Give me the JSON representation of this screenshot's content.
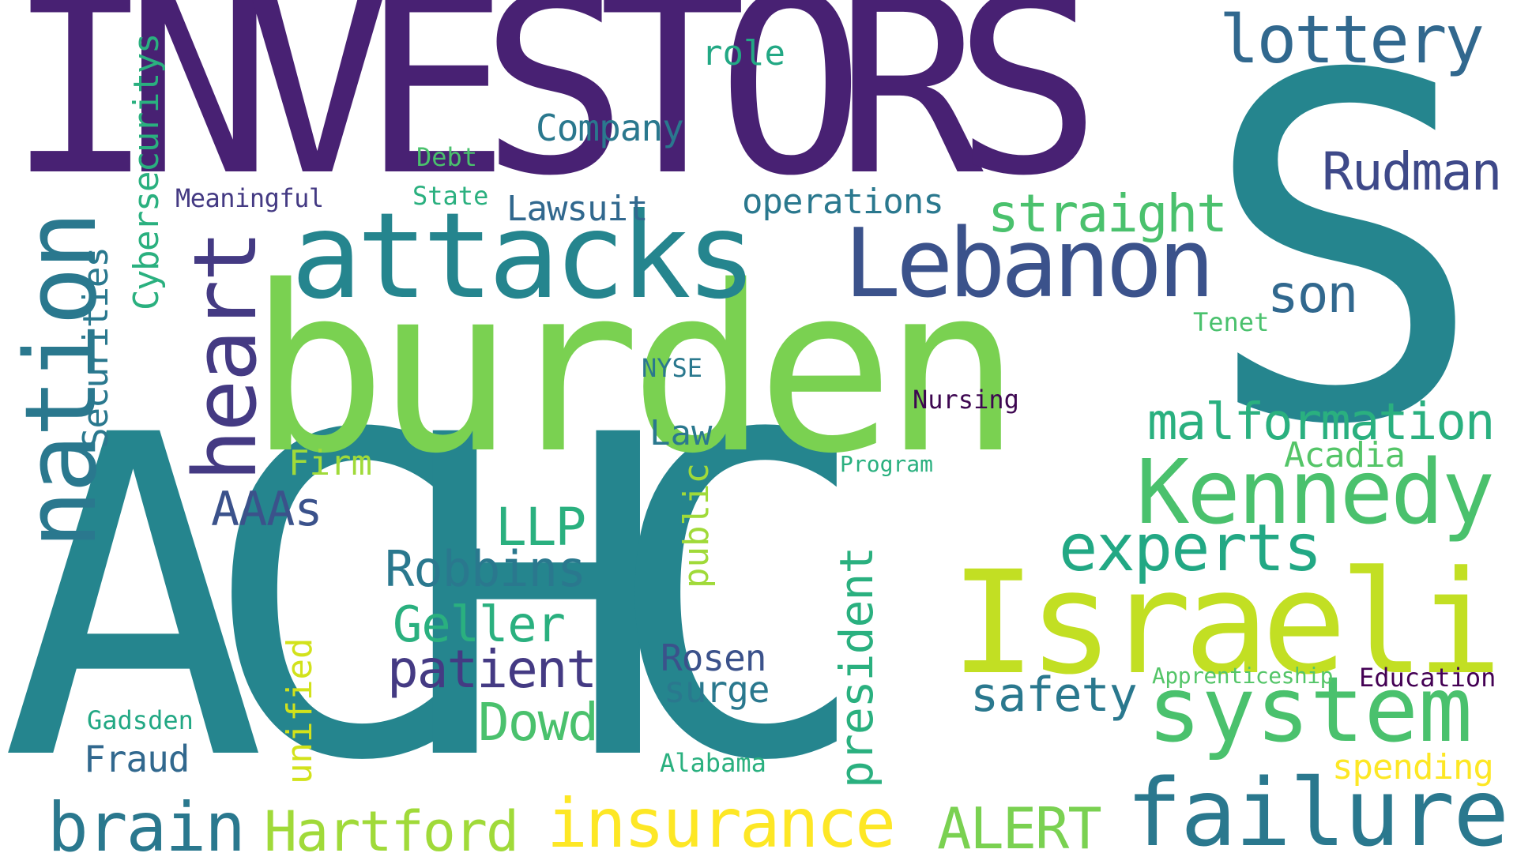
{
  "words": {
    "w0": {
      "text": "INVESTORS",
      "color": "#482173"
    },
    "w1": {
      "text": "S",
      "color": "#25858e"
    },
    "w2": {
      "text": "ACHC",
      "color": "#25858e"
    },
    "w3": {
      "text": "burden",
      "color": "#7ad151"
    },
    "w4": {
      "text": "attacks",
      "color": "#25858e"
    },
    "w5": {
      "text": "Lebanon",
      "color": "#3b528b"
    },
    "w6": {
      "text": "Israeli",
      "color": "#c2df23"
    },
    "w7": {
      "text": "Kennedy",
      "color": "#4ac16d"
    },
    "w8": {
      "text": "system",
      "color": "#4ac16d"
    },
    "w9": {
      "text": "failure",
      "color": "#2a788e"
    },
    "w10": {
      "text": "insurance",
      "color": "#fde725"
    },
    "w11": {
      "text": "brain",
      "color": "#2a788e"
    },
    "w12": {
      "text": "Hartford",
      "color": "#a0da39"
    },
    "w13": {
      "text": "ALERT",
      "color": "#7ad151"
    },
    "w14": {
      "text": "lottery",
      "color": "#31688e"
    },
    "w15": {
      "text": "Rudman",
      "color": "#3e4989"
    },
    "w16": {
      "text": "straight",
      "color": "#4ac16d"
    },
    "w17": {
      "text": "son",
      "color": "#31688e"
    },
    "w18": {
      "text": "malformation",
      "color": "#2ab07f"
    },
    "w19": {
      "text": "experts",
      "color": "#22a884"
    },
    "w20": {
      "text": "Acadia",
      "color": "#54c568"
    },
    "w21": {
      "text": "safety",
      "color": "#2a788e"
    },
    "w22": {
      "text": "Robbins",
      "color": "#2a788e"
    },
    "w23": {
      "text": "Geller",
      "color": "#2ab07f"
    },
    "w24": {
      "text": "patient",
      "color": "#443a83"
    },
    "w25": {
      "text": "Dowd",
      "color": "#4ac16d"
    },
    "w26": {
      "text": "LLP",
      "color": "#2ab07f"
    },
    "w27": {
      "text": "AAAs",
      "color": "#3b528b"
    },
    "w28": {
      "text": "Rosen",
      "color": "#3b528b"
    },
    "w29": {
      "text": "surge",
      "color": "#2a788e"
    },
    "w30": {
      "text": "Company",
      "color": "#2a788e"
    },
    "w31": {
      "text": "operations",
      "color": "#2a788e"
    },
    "w32": {
      "text": "Lawsuit",
      "color": "#31688e"
    },
    "w33": {
      "text": "role",
      "color": "#22a884"
    },
    "w34": {
      "text": "Debt",
      "color": "#4ac16d"
    },
    "w35": {
      "text": "State",
      "color": "#2ab07f"
    },
    "w36": {
      "text": "Meaningful",
      "color": "#443a83"
    },
    "w37": {
      "text": "Tenet",
      "color": "#4ac16d"
    },
    "w38": {
      "text": "NYSE",
      "color": "#2a788e"
    },
    "w39": {
      "text": "Nursing",
      "color": "#3e0751"
    },
    "w40": {
      "text": "Law",
      "color": "#2a788e"
    },
    "w41": {
      "text": "Firm",
      "color": "#a0da39"
    },
    "w42": {
      "text": "Program",
      "color": "#2ab07f"
    },
    "w43": {
      "text": "Apprenticeship",
      "color": "#54c568"
    },
    "w44": {
      "text": "Education",
      "color": "#440154"
    },
    "w45": {
      "text": "Gadsden",
      "color": "#22a884"
    },
    "w46": {
      "text": "Fraud",
      "color": "#31688e"
    },
    "w47": {
      "text": "Alabama",
      "color": "#2ab07f"
    },
    "w48": {
      "text": "spending",
      "color": "#fde725"
    },
    "w49": {
      "text": "nation",
      "color": "#2a788e"
    },
    "w50": {
      "text": "heart",
      "color": "#443a83"
    },
    "w51": {
      "text": "Cybersecuritys",
      "color": "#2ab07f"
    },
    "w52": {
      "text": "Securities",
      "color": "#2a788e"
    },
    "w53": {
      "text": "public",
      "color": "#a0da39"
    },
    "w54": {
      "text": "president",
      "color": "#2ab07f"
    },
    "w55": {
      "text": "unified",
      "color": "#d2e21b"
    }
  }
}
